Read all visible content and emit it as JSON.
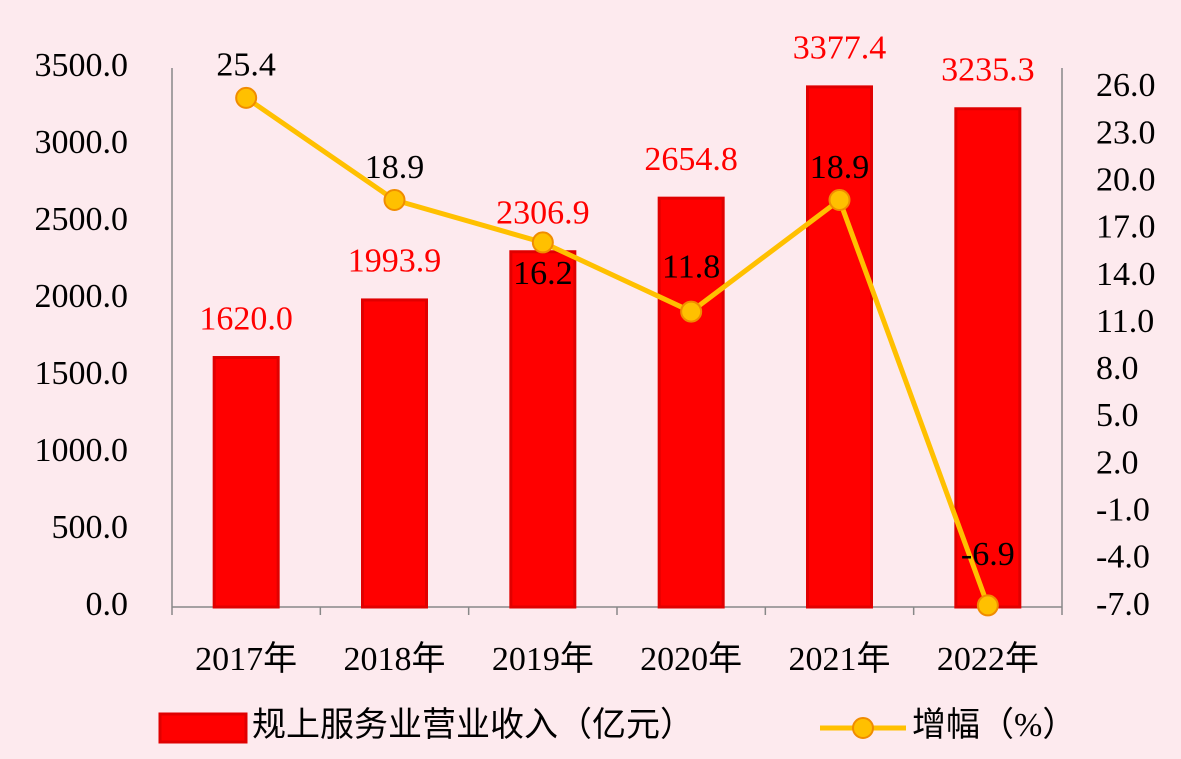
{
  "chart_data": {
    "type": "bar",
    "categories": [
      "2017年",
      "2018年",
      "2019年",
      "2020年",
      "2021年",
      "2022年"
    ],
    "series": [
      {
        "name": "规上服务业营业收入（亿元）",
        "type": "bar",
        "color": "#ff0000",
        "values": [
          1620.0,
          1993.9,
          2306.9,
          2654.8,
          3377.4,
          3235.3
        ],
        "value_labels": [
          "1620.0",
          "1993.9",
          "2306.9",
          "2654.8",
          "3377.4",
          "3235.3"
        ]
      },
      {
        "name": "增幅（%）",
        "type": "line",
        "axis": "y2",
        "color": "#ffc000",
        "values": [
          25.4,
          18.9,
          16.2,
          11.8,
          18.9,
          -6.9
        ]
      }
    ],
    "ylim": [
      0,
      3500
    ],
    "yticks": [
      {
        "value": 0,
        "label": "0.0"
      },
      {
        "value": 500,
        "label": "500.0"
      },
      {
        "value": 1000,
        "label": "1000.0"
      },
      {
        "value": 1500,
        "label": "1500.0"
      },
      {
        "value": 2000,
        "label": "2000.0"
      },
      {
        "value": 2500,
        "label": "2500.0"
      },
      {
        "value": 3000,
        "label": "3000.0"
      },
      {
        "value": 3500,
        "label": "3500.0"
      }
    ],
    "y2lim": [
      -7,
      27.3
    ],
    "y2ticks": [
      {
        "value": -7,
        "label": "-7.0"
      },
      {
        "value": -4,
        "label": "-4.0"
      },
      {
        "value": -1,
        "label": "-1.0"
      },
      {
        "value": 2,
        "label": "2.0"
      },
      {
        "value": 5,
        "label": "5.0"
      },
      {
        "value": 8,
        "label": "8.0"
      },
      {
        "value": 11,
        "label": "11.0"
      },
      {
        "value": 14,
        "label": "14.0"
      },
      {
        "value": 17,
        "label": "17.0"
      },
      {
        "value": 20,
        "label": "20.0"
      },
      {
        "value": 23,
        "label": "23.0"
      },
      {
        "value": 26,
        "label": "26.0"
      }
    ],
    "grid": false,
    "legend": "bottom"
  }
}
